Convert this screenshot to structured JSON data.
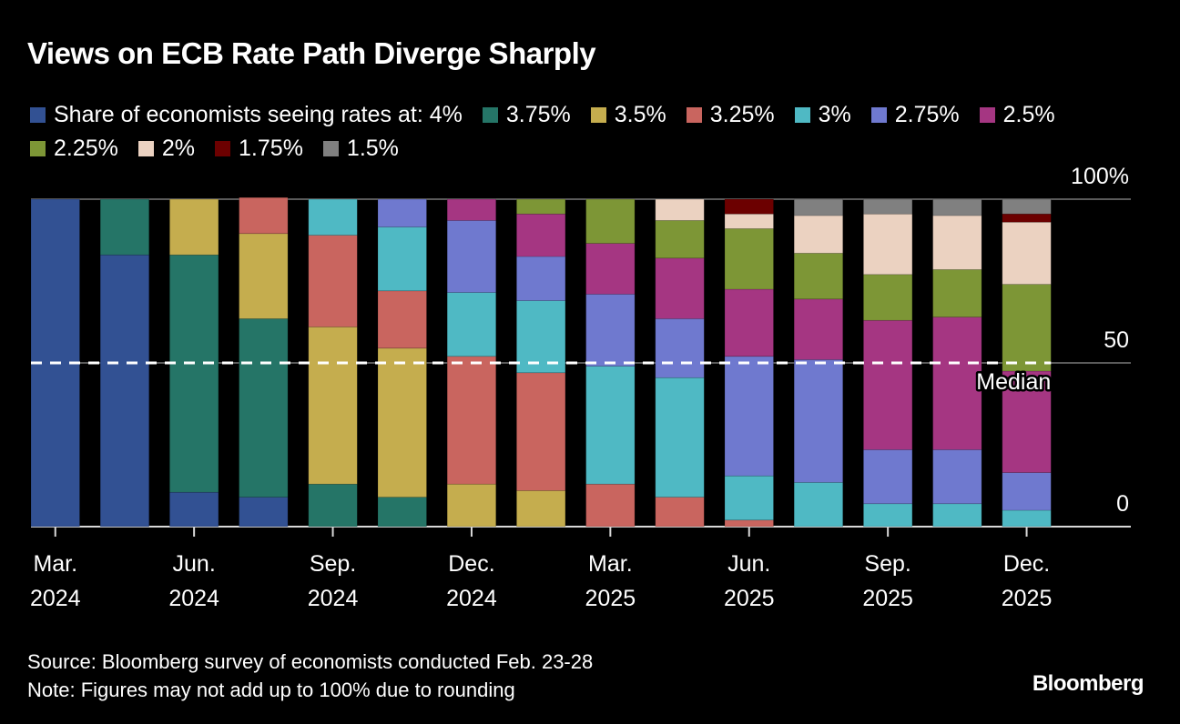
{
  "title": "Views on ECB Rate Path Diverge Sharply",
  "legend_prefix": "Share of economists seeing rates at: ",
  "footer": {
    "source": "Source: Bloomberg survey of economists conducted Feb. 23-28",
    "note": "Note: Figures may not add up to 100% due to rounding"
  },
  "brand": "Bloomberg",
  "chart_data": {
    "type": "bar",
    "stacked": true,
    "title": "Views on ECB Rate Path Diverge Sharply",
    "xlabel": "",
    "ylabel": "",
    "ylim": [
      0,
      100
    ],
    "y_ticks": [
      "0",
      "50",
      "100%"
    ],
    "y_tick_values": [
      0,
      50,
      100
    ],
    "grid": true,
    "legend_position": "top",
    "x_tick_labels": [
      {
        "index": 0,
        "month": "Mar.",
        "year": "2024"
      },
      {
        "index": 2,
        "month": "Jun.",
        "year": "2024"
      },
      {
        "index": 4,
        "month": "Sep.",
        "year": "2024"
      },
      {
        "index": 6,
        "month": "Dec.",
        "year": "2024"
      },
      {
        "index": 8,
        "month": "Mar.",
        "year": "2025"
      },
      {
        "index": 10,
        "month": "Jun.",
        "year": "2025"
      },
      {
        "index": 12,
        "month": "Sep.",
        "year": "2025"
      },
      {
        "index": 14,
        "month": "Dec.",
        "year": "2025"
      }
    ],
    "annotation": {
      "label": "Median",
      "value": 50,
      "style": "dashed"
    },
    "series": [
      {
        "name": "4%",
        "color": "#325193",
        "values": [
          100,
          83,
          10.5,
          9,
          0,
          0,
          0,
          0,
          0,
          0,
          0,
          0,
          0,
          0,
          0
        ]
      },
      {
        "name": "3.75%",
        "color": "#257567",
        "values": [
          0,
          17,
          72.5,
          54.5,
          13,
          9,
          0,
          0,
          0,
          0,
          0,
          0,
          0,
          0,
          0
        ]
      },
      {
        "name": "3.5%",
        "color": "#c5ad4e",
        "values": [
          0,
          0,
          17,
          26,
          48,
          45.5,
          13,
          11,
          0,
          0,
          0,
          0,
          0,
          0,
          0
        ]
      },
      {
        "name": "3.25%",
        "color": "#c9655f",
        "values": [
          0,
          0,
          0,
          11,
          28,
          17.5,
          39,
          36,
          13,
          9,
          2,
          0,
          0,
          0,
          0
        ]
      },
      {
        "name": "3%",
        "color": "#4fb9c4",
        "values": [
          0,
          0,
          0,
          0,
          11,
          19.5,
          19.5,
          22,
          36,
          36.5,
          13.5,
          13.5,
          7,
          7,
          5
        ]
      },
      {
        "name": "2.75%",
        "color": "#6f79cf",
        "values": [
          0,
          0,
          0,
          0,
          0,
          8.5,
          22,
          13.5,
          22,
          18,
          36.5,
          37.5,
          16.5,
          16.5,
          11.5
        ]
      },
      {
        "name": "2.5%",
        "color": "#a53682",
        "values": [
          0,
          0,
          0,
          0,
          0,
          0,
          6.5,
          13,
          15.5,
          18.5,
          20.5,
          18.5,
          39.5,
          40.5,
          31
        ]
      },
      {
        "name": "2.25%",
        "color": "#7d9636",
        "values": [
          0,
          0,
          0,
          0,
          0,
          0,
          0,
          4.5,
          13.5,
          11.5,
          18.5,
          14,
          14,
          14.5,
          26.5
        ]
      },
      {
        "name": "2%",
        "color": "#ebd2c1",
        "values": [
          0,
          0,
          0,
          0,
          0,
          0,
          0,
          0,
          0,
          6.5,
          4.5,
          11.5,
          18.5,
          16.5,
          19
        ]
      },
      {
        "name": "1.75%",
        "color": "#6c0000",
        "values": [
          0,
          0,
          0,
          0,
          0,
          0,
          0,
          0,
          0,
          0,
          4.5,
          0,
          0,
          0,
          2.5
        ]
      },
      {
        "name": "1.5%",
        "color": "#808080",
        "values": [
          0,
          0,
          0,
          0,
          0,
          0,
          0,
          0,
          0,
          0,
          0,
          5,
          4.5,
          5,
          4.5
        ]
      }
    ],
    "bar_count": 15
  }
}
